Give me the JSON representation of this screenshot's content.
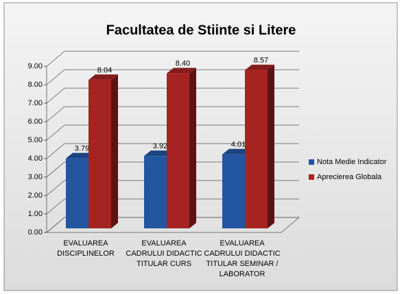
{
  "chart_data": {
    "type": "bar3d",
    "title": "Facultatea de Stiinte si Litere",
    "categories": [
      "EVALUAREA DISCIPLINELOR",
      "EVALUAREA CADRULUI DIDACTIC TITULAR CURS",
      "EVALUAREA CADRULUI DIDACTIC TITULAR SEMINAR / LABORATOR"
    ],
    "series": [
      {
        "name": "Nota Medie Indicator",
        "color": "#2355a0",
        "values": [
          3.79,
          3.92,
          4.01
        ],
        "value_labels": [
          "3.79",
          "3.92",
          "4.01"
        ]
      },
      {
        "name": "Aprecierea Globala",
        "color": "#a52422",
        "values": [
          8.04,
          8.4,
          8.57
        ],
        "value_labels": [
          "8.04",
          "8.40",
          "8.57"
        ]
      }
    ],
    "ylim": [
      0,
      9
    ],
    "yticks": [
      {
        "value": 0,
        "label": "0.00"
      },
      {
        "value": 1,
        "label": "1.00"
      },
      {
        "value": 2,
        "label": "2.00"
      },
      {
        "value": 3,
        "label": "3.00"
      },
      {
        "value": 4,
        "label": "4.00"
      },
      {
        "value": 5,
        "label": "5.00"
      },
      {
        "value": 6,
        "label": "6.00"
      },
      {
        "value": 7,
        "label": "7.00"
      },
      {
        "value": 8,
        "label": "8.00"
      },
      {
        "value": 9,
        "label": "9.00"
      }
    ],
    "grid": true,
    "legend": "right"
  }
}
